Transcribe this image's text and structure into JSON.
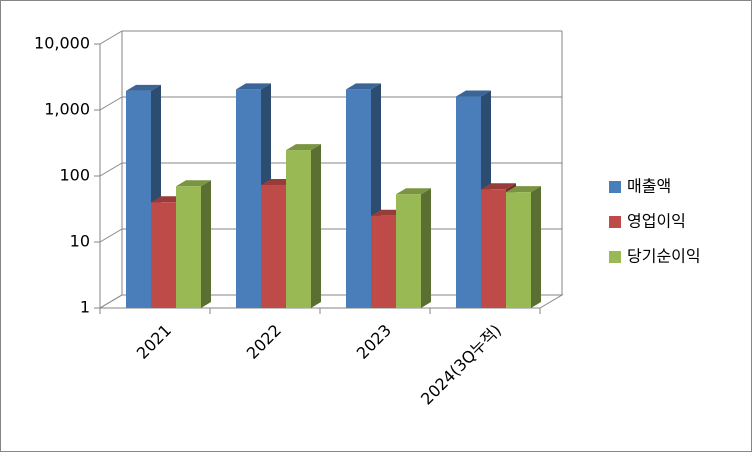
{
  "chart_data": {
    "type": "bar3d",
    "categories": [
      "2021",
      "2022",
      "2023",
      "2024(3Q누적)"
    ],
    "series": [
      {
        "name": "매출액",
        "color": "#4a7ebb",
        "values": [
          1950,
          2050,
          2050,
          1600
        ]
      },
      {
        "name": "영업이익",
        "color": "#be4b48",
        "values": [
          40,
          73,
          25,
          63
        ]
      },
      {
        "name": "당기순이익",
        "color": "#98b954",
        "values": [
          70,
          247,
          53,
          57
        ]
      }
    ],
    "ylim": [
      1,
      10000
    ],
    "log_scale": true,
    "yticks": [
      1,
      10,
      100,
      {
        "value": 1000,
        "label": "1,000"
      },
      {
        "value": 10000,
        "label": "10,000"
      }
    ],
    "grid": true,
    "legend": "right"
  }
}
